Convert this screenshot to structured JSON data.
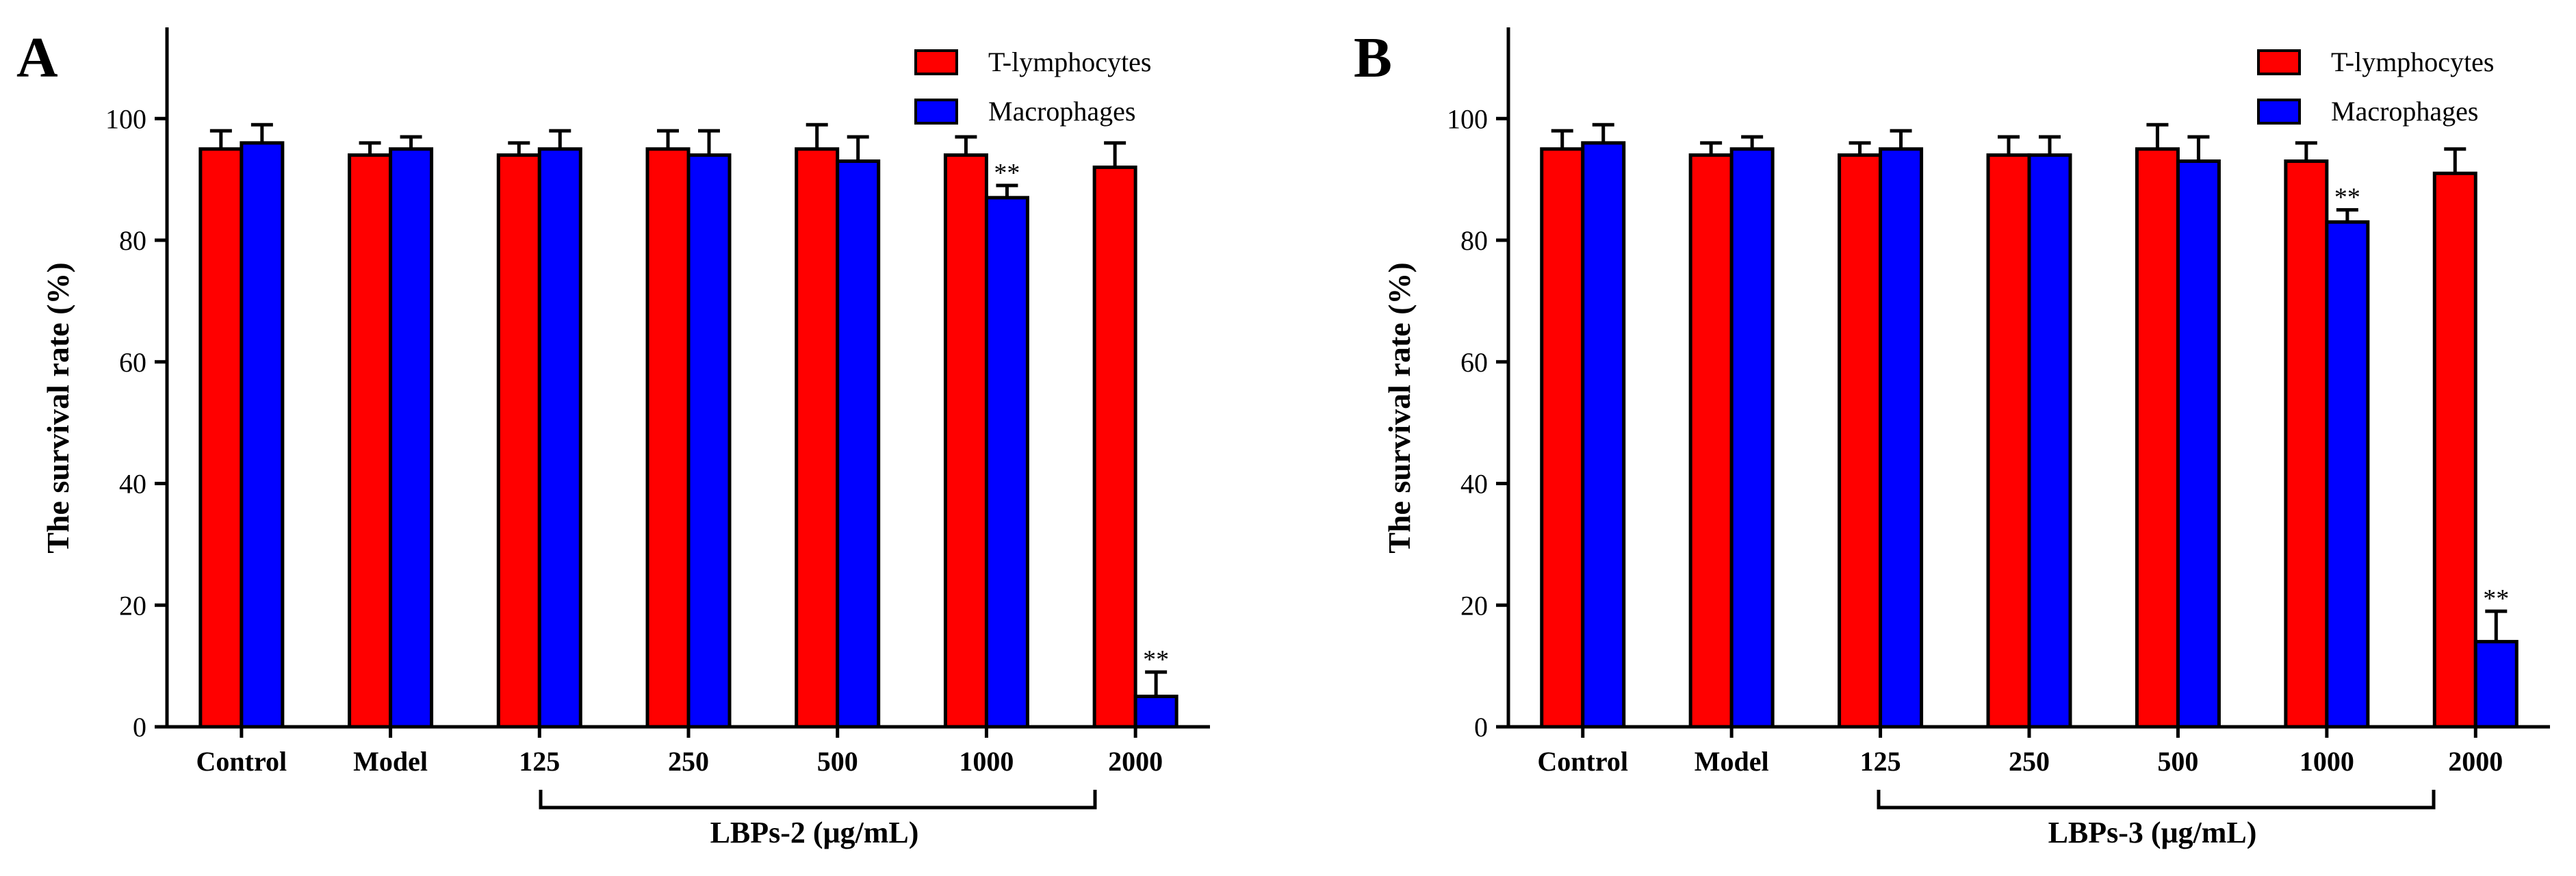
{
  "colors": {
    "t_lymphocytes": "#ff0000",
    "macrophages": "#0000ff",
    "axis": "#000000"
  },
  "chart_data": [
    {
      "panel": "A",
      "type": "bar",
      "ylabel": "The survival rate (%)",
      "ylim": [
        0,
        115
      ],
      "yticks": [
        "0",
        "20",
        "40",
        "60",
        "80",
        "100"
      ],
      "categories": [
        "Control",
        "Model",
        "125",
        "250",
        "500",
        "1000",
        "2000"
      ],
      "group_label": "LBPs-2 (μg/mL)",
      "legend_position": "top-right",
      "series": [
        {
          "name": "T-lymphocytes",
          "values": [
            95,
            94,
            94,
            95,
            95,
            94,
            92
          ],
          "errors": [
            3,
            2,
            2,
            3,
            4,
            3,
            4
          ],
          "significance": [
            "",
            "",
            "",
            "",
            "",
            "",
            ""
          ]
        },
        {
          "name": "Macrophages",
          "values": [
            96,
            95,
            95,
            94,
            93,
            87,
            5
          ],
          "errors": [
            3,
            2,
            3,
            4,
            4,
            2,
            4
          ],
          "significance": [
            "",
            "",
            "",
            "",
            "",
            "**",
            "**"
          ]
        }
      ]
    },
    {
      "panel": "B",
      "type": "bar",
      "ylabel": "The survival rate (%)",
      "ylim": [
        0,
        115
      ],
      "yticks": [
        "0",
        "20",
        "40",
        "60",
        "80",
        "100"
      ],
      "categories": [
        "Control",
        "Model",
        "125",
        "250",
        "500",
        "1000",
        "2000"
      ],
      "group_label": "LBPs-3 (μg/mL)",
      "legend_position": "top-right",
      "series": [
        {
          "name": "T-lymphocytes",
          "values": [
            95,
            94,
            94,
            94,
            95,
            93,
            91
          ],
          "errors": [
            3,
            2,
            2,
            3,
            4,
            3,
            4
          ],
          "significance": [
            "",
            "",
            "",
            "",
            "",
            "",
            ""
          ]
        },
        {
          "name": "Macrophages",
          "values": [
            96,
            95,
            95,
            94,
            93,
            83,
            14
          ],
          "errors": [
            3,
            2,
            3,
            3,
            4,
            2,
            5
          ],
          "significance": [
            "",
            "",
            "",
            "",
            "",
            "**",
            "**"
          ]
        }
      ]
    }
  ]
}
